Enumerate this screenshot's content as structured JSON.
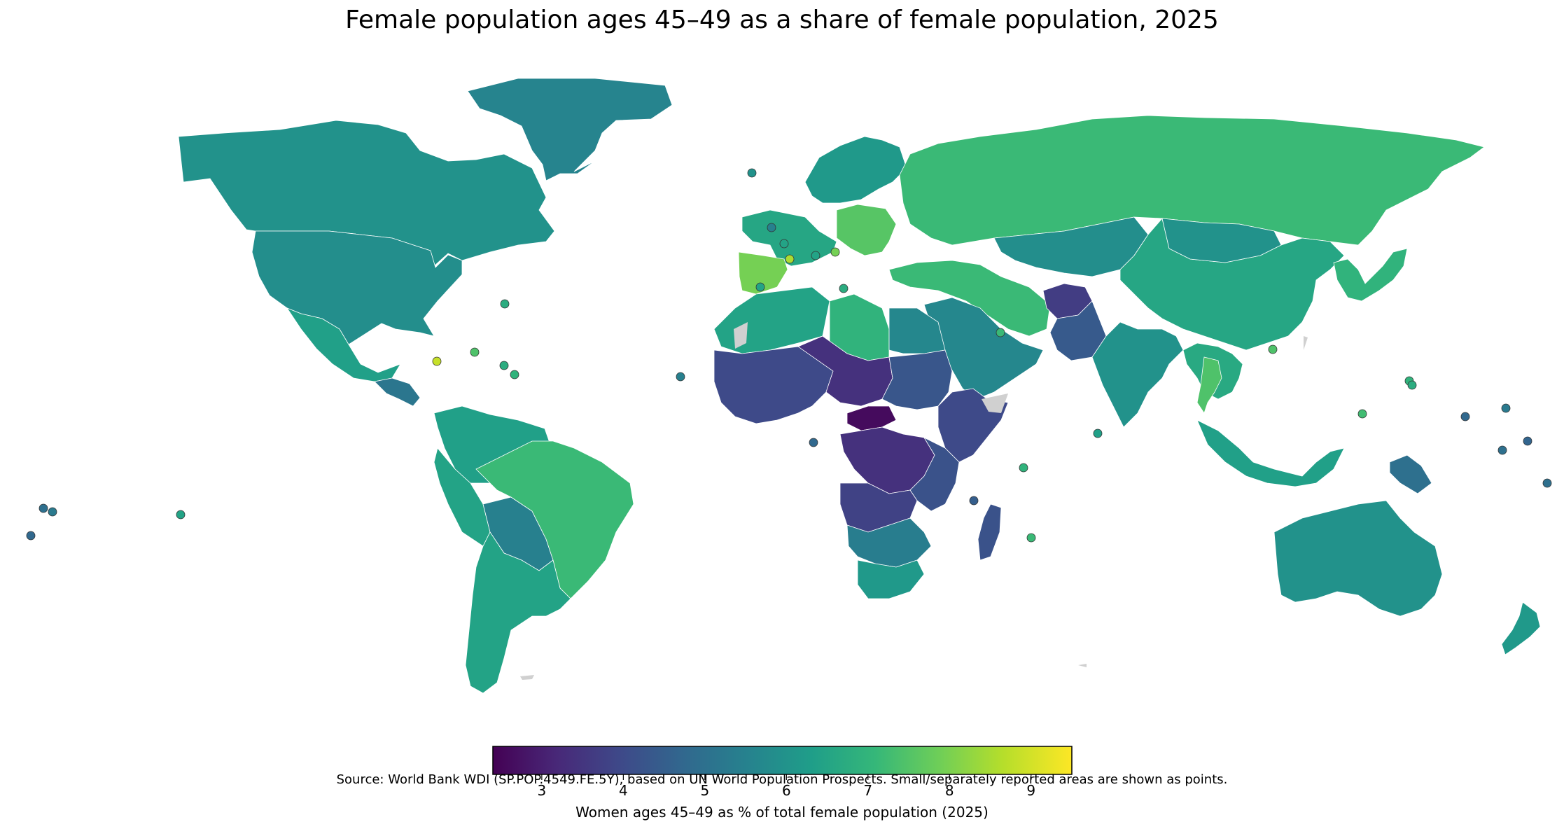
{
  "title": "Female population ages 45–49 as a share of female population, 2025",
  "source": "Source: World Bank WDI (SP.POP.4549.FE.5Y), based on UN World Population Prospects. Small/separately reported areas are shown as points.",
  "colorbar": {
    "label": "Women ages 45–49 as % of total female population (2025)",
    "min": 2.4,
    "max": 9.5,
    "ticks": [
      "3",
      "4",
      "5",
      "6",
      "7",
      "8",
      "9"
    ],
    "colormap": "viridis"
  },
  "chart_data": {
    "type": "choropleth",
    "projection": "equirectangular",
    "regions": [
      {
        "name": "Greenland",
        "value": 5.6
      },
      {
        "name": "Canada",
        "value": 6.0
      },
      {
        "name": "United States",
        "value": 5.9
      },
      {
        "name": "Mexico",
        "value": 6.4
      },
      {
        "name": "Central America",
        "value": 5.2
      },
      {
        "name": "Colombia/Venezuela",
        "value": 6.4
      },
      {
        "name": "Peru/Ecuador",
        "value": 6.5
      },
      {
        "name": "Bolivia/Paraguay",
        "value": 5.5
      },
      {
        "name": "Brazil",
        "value": 7.2
      },
      {
        "name": "Argentina/Chile",
        "value": 6.5
      },
      {
        "name": "Western Europe",
        "value": 6.6
      },
      {
        "name": "Iberia",
        "value": 8.0
      },
      {
        "name": "Central Europe",
        "value": 7.6
      },
      {
        "name": "Scandinavia",
        "value": 6.2
      },
      {
        "name": "Russia",
        "value": 7.2
      },
      {
        "name": "Central Asia",
        "value": 5.9
      },
      {
        "name": "China",
        "value": 6.6
      },
      {
        "name": "Mongolia",
        "value": 6.0
      },
      {
        "name": "Iran/Turkey",
        "value": 7.2
      },
      {
        "name": "Arabian Peninsula",
        "value": 5.7
      },
      {
        "name": "Afghanistan",
        "value": 3.7
      },
      {
        "name": "Pakistan",
        "value": 4.4
      },
      {
        "name": "India",
        "value": 6.0
      },
      {
        "name": "Southeast Asia",
        "value": 6.7
      },
      {
        "name": "Thailand",
        "value": 7.5
      },
      {
        "name": "Japan/Korea",
        "value": 7.0
      },
      {
        "name": "Indonesia",
        "value": 6.4
      },
      {
        "name": "Papua New Guinea",
        "value": 5.0
      },
      {
        "name": "Australia",
        "value": 6.0
      },
      {
        "name": "New Zealand",
        "value": 6.2
      },
      {
        "name": "North Africa",
        "value": 6.5
      },
      {
        "name": "Libya",
        "value": 7.0
      },
      {
        "name": "Egypt",
        "value": 5.7
      },
      {
        "name": "Sahel / West Africa",
        "value": 4.0
      },
      {
        "name": "Niger/Chad",
        "value": 3.4
      },
      {
        "name": "Sudan",
        "value": 4.3
      },
      {
        "name": "Ethiopia/Somalia",
        "value": 4.0
      },
      {
        "name": "Central African Republic",
        "value": 2.6
      },
      {
        "name": "DR Congo",
        "value": 3.4
      },
      {
        "name": "East Africa",
        "value": 4.2
      },
      {
        "name": "Angola/Zambia",
        "value": 3.8
      },
      {
        "name": "Madagascar",
        "value": 4.2
      },
      {
        "name": "Southern Africa",
        "value": 5.4
      },
      {
        "name": "South Africa",
        "value": 6.2
      }
    ],
    "points": [
      {
        "name": "Iceland",
        "value": 6.0
      },
      {
        "name": "Faroe Islands",
        "value": 5.5
      },
      {
        "name": "Channel Islands",
        "value": 6.5
      },
      {
        "name": "Monaco",
        "value": 6.5
      },
      {
        "name": "Andorra",
        "value": 8.6
      },
      {
        "name": "San Marino",
        "value": 8.0
      },
      {
        "name": "Malta",
        "value": 6.8
      },
      {
        "name": "Gibraltar",
        "value": 6.5
      },
      {
        "name": "Bermuda",
        "value": 6.8
      },
      {
        "name": "Cayman Islands",
        "value": 8.9
      },
      {
        "name": "Puerto Rico",
        "value": 7.5
      },
      {
        "name": "Virgin Islands",
        "value": 6.8
      },
      {
        "name": "Caribbean islands",
        "value": 7.0
      },
      {
        "name": "Cabo Verde",
        "value": 5.5
      },
      {
        "name": "Sao Tome and Principe",
        "value": 4.8
      },
      {
        "name": "Bahrain",
        "value": 7.2
      },
      {
        "name": "Hong Kong",
        "value": 7.5
      },
      {
        "name": "Maldives",
        "value": 6.4
      },
      {
        "name": "Seychelles",
        "value": 7.0
      },
      {
        "name": "Mauritius",
        "value": 7.2
      },
      {
        "name": "Comoros",
        "value": 4.5
      },
      {
        "name": "Guam",
        "value": 7.0
      },
      {
        "name": "Northern Mariana Islands",
        "value": 6.8
      },
      {
        "name": "Palau",
        "value": 7.3
      },
      {
        "name": "Micronesia",
        "value": 4.8
      },
      {
        "name": "Marshall Islands",
        "value": 5.3
      },
      {
        "name": "Nauru",
        "value": 5.0
      },
      {
        "name": "Kiribati",
        "value": 4.7
      },
      {
        "name": "Tuvalu",
        "value": 5.0
      },
      {
        "name": "Samoa",
        "value": 4.8
      },
      {
        "name": "Tonga",
        "value": 5.0
      },
      {
        "name": "French Polynesia",
        "value": 6.5
      },
      {
        "name": "American Samoa",
        "value": 5.3
      }
    ]
  }
}
